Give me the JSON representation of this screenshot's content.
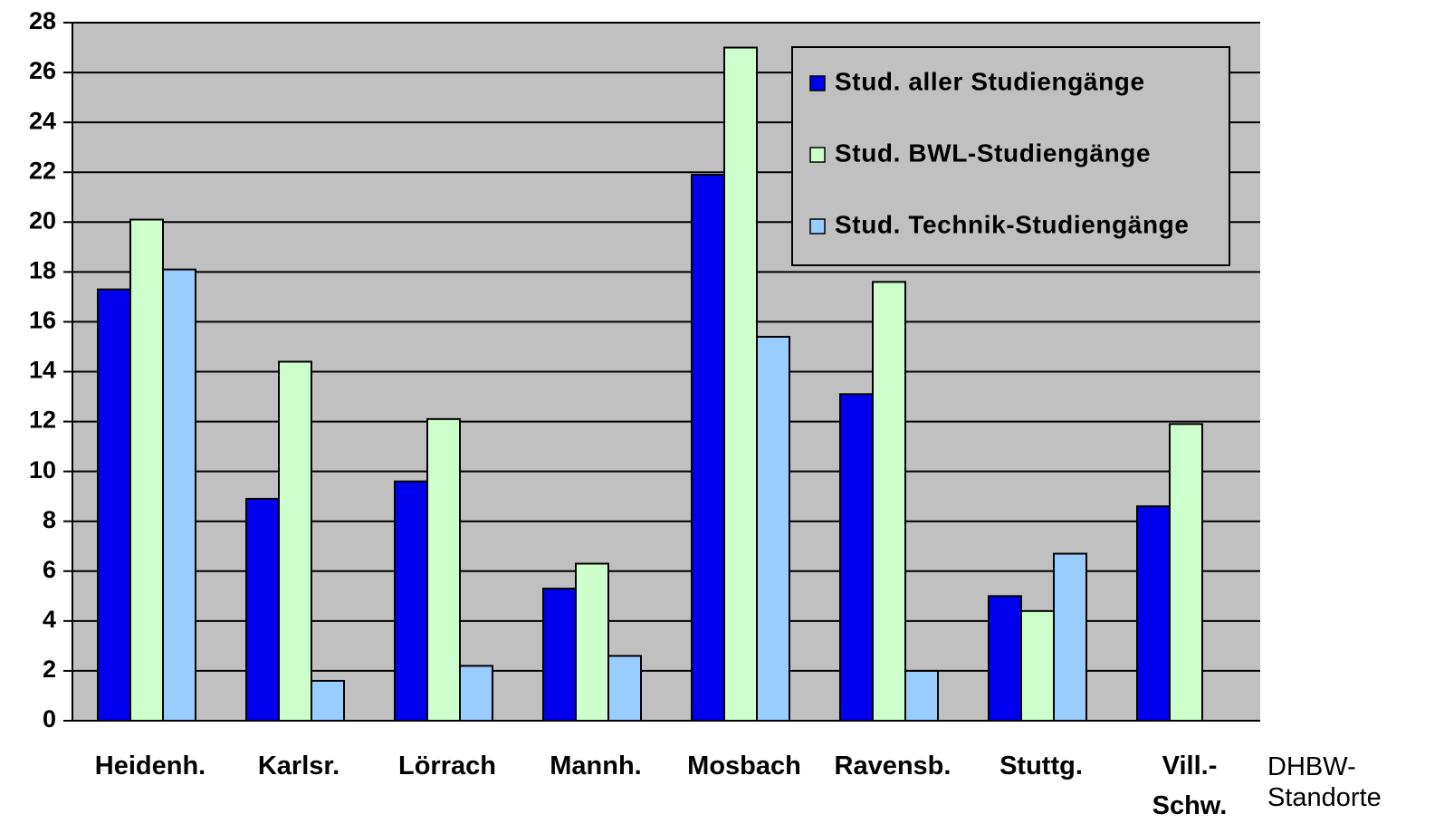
{
  "chart_data": {
    "type": "bar",
    "x_label": "DHBW-\nStandorte",
    "categories": [
      "Heidenh.",
      "Karlsr.",
      "Lörrach",
      "Mannh.",
      "Mosbach",
      "Ravensb.",
      "Stuttg.",
      "Vill.-\nSchw."
    ],
    "series": [
      {
        "name": "Stud. aller Studiengänge",
        "color": "#0000ee",
        "values": [
          17.3,
          8.9,
          9.6,
          5.3,
          21.9,
          13.1,
          5.0,
          8.6
        ]
      },
      {
        "name": "Stud. BWL-Studiengänge",
        "color": "#ccffcc",
        "values": [
          20.1,
          14.4,
          12.1,
          6.3,
          27.0,
          17.6,
          4.4,
          11.9
        ]
      },
      {
        "name": "Stud. Technik-Studiengänge",
        "color": "#99ccff",
        "values": [
          18.1,
          1.6,
          2.2,
          2.6,
          15.4,
          2.0,
          6.7,
          null
        ]
      }
    ],
    "ylim": [
      0,
      28
    ],
    "yticks": [
      0,
      2,
      4,
      6,
      8,
      10,
      12,
      14,
      16,
      18,
      20,
      22,
      24,
      26,
      28
    ],
    "grid": true,
    "legend": "upper right",
    "background": "#c0c0c0"
  }
}
